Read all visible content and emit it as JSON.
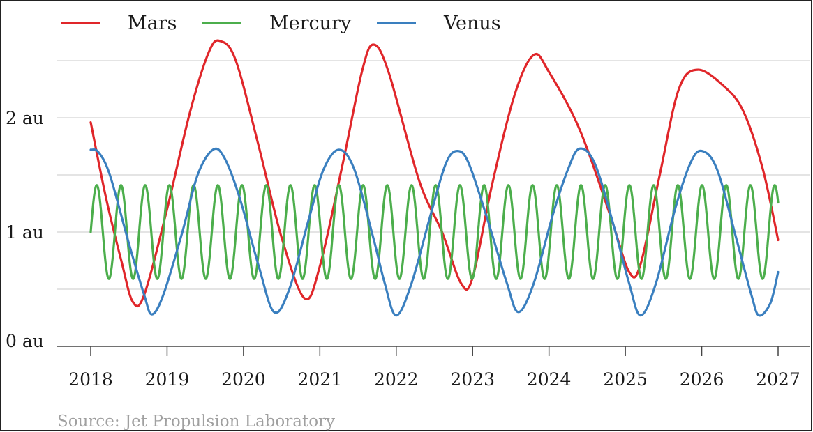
{
  "chart_data": {
    "type": "line",
    "title": "",
    "xlabel": "",
    "ylabel": "",
    "x_ticks": [
      "2018",
      "2019",
      "2020",
      "2021",
      "2022",
      "2023",
      "2024",
      "2025",
      "2026",
      "2027"
    ],
    "y_ticks": [
      "0 au",
      "1 au",
      "2 au"
    ],
    "xlim": [
      2018,
      2027
    ],
    "ylim": [
      0,
      2.5
    ],
    "grid": "horizontal",
    "legend_position": "top-left",
    "source": "Source: Jet Propulsion Laboratory",
    "series": [
      {
        "name": "Mars",
        "color": "#e0262a",
        "points": [
          [
            2018.0,
            1.96
          ],
          [
            2018.2,
            1.3
          ],
          [
            2018.4,
            0.75
          ],
          [
            2018.55,
            0.39
          ],
          [
            2018.7,
            0.45
          ],
          [
            2019.0,
            1.2
          ],
          [
            2019.3,
            2.05
          ],
          [
            2019.55,
            2.58
          ],
          [
            2019.7,
            2.67
          ],
          [
            2019.9,
            2.5
          ],
          [
            2020.2,
            1.75
          ],
          [
            2020.5,
            0.95
          ],
          [
            2020.8,
            0.42
          ],
          [
            2021.0,
            0.7
          ],
          [
            2021.3,
            1.6
          ],
          [
            2021.55,
            2.4
          ],
          [
            2021.7,
            2.64
          ],
          [
            2021.9,
            2.4
          ],
          [
            2022.3,
            1.45
          ],
          [
            2022.6,
            1.0
          ],
          [
            2022.85,
            0.55
          ],
          [
            2023.0,
            0.6
          ],
          [
            2023.25,
            1.4
          ],
          [
            2023.55,
            2.2
          ],
          [
            2023.8,
            2.55
          ],
          [
            2024.0,
            2.4
          ],
          [
            2024.4,
            1.9
          ],
          [
            2024.8,
            1.15
          ],
          [
            2025.05,
            0.65
          ],
          [
            2025.2,
            0.72
          ],
          [
            2025.45,
            1.5
          ],
          [
            2025.7,
            2.25
          ],
          [
            2025.95,
            2.42
          ],
          [
            2026.3,
            2.27
          ],
          [
            2026.55,
            2.05
          ],
          [
            2026.8,
            1.55
          ],
          [
            2027.0,
            0.93
          ]
        ]
      },
      {
        "name": "Mercury",
        "color": "#4cae4c",
        "start": 2018.0,
        "end": 2027.0,
        "period_years": 0.317,
        "mean_au": 1.0,
        "amplitude_au": 0.41
      },
      {
        "name": "Venus",
        "color": "#3a7fbf",
        "points": [
          [
            2018.0,
            1.72
          ],
          [
            2018.1,
            1.7
          ],
          [
            2018.25,
            1.5
          ],
          [
            2018.5,
            0.9
          ],
          [
            2018.7,
            0.45
          ],
          [
            2018.8,
            0.28
          ],
          [
            2018.95,
            0.45
          ],
          [
            2019.2,
            1.0
          ],
          [
            2019.4,
            1.5
          ],
          [
            2019.6,
            1.72
          ],
          [
            2019.75,
            1.65
          ],
          [
            2019.95,
            1.3
          ],
          [
            2020.2,
            0.7
          ],
          [
            2020.4,
            0.3
          ],
          [
            2020.6,
            0.5
          ],
          [
            2020.85,
            1.1
          ],
          [
            2021.05,
            1.55
          ],
          [
            2021.25,
            1.72
          ],
          [
            2021.45,
            1.55
          ],
          [
            2021.7,
            0.95
          ],
          [
            2021.85,
            0.55
          ],
          [
            2022.0,
            0.27
          ],
          [
            2022.2,
            0.55
          ],
          [
            2022.45,
            1.15
          ],
          [
            2022.65,
            1.6
          ],
          [
            2022.8,
            1.71
          ],
          [
            2022.95,
            1.6
          ],
          [
            2023.2,
            1.1
          ],
          [
            2023.45,
            0.55
          ],
          [
            2023.6,
            0.3
          ],
          [
            2023.8,
            0.55
          ],
          [
            2024.05,
            1.15
          ],
          [
            2024.25,
            1.55
          ],
          [
            2024.4,
            1.73
          ],
          [
            2024.6,
            1.6
          ],
          [
            2024.85,
            1.05
          ],
          [
            2025.05,
            0.55
          ],
          [
            2025.2,
            0.27
          ],
          [
            2025.4,
            0.55
          ],
          [
            2025.65,
            1.2
          ],
          [
            2025.85,
            1.6
          ],
          [
            2026.0,
            1.71
          ],
          [
            2026.2,
            1.55
          ],
          [
            2026.45,
            0.95
          ],
          [
            2026.65,
            0.45
          ],
          [
            2026.75,
            0.27
          ],
          [
            2026.9,
            0.38
          ],
          [
            2027.0,
            0.65
          ]
        ]
      }
    ]
  }
}
